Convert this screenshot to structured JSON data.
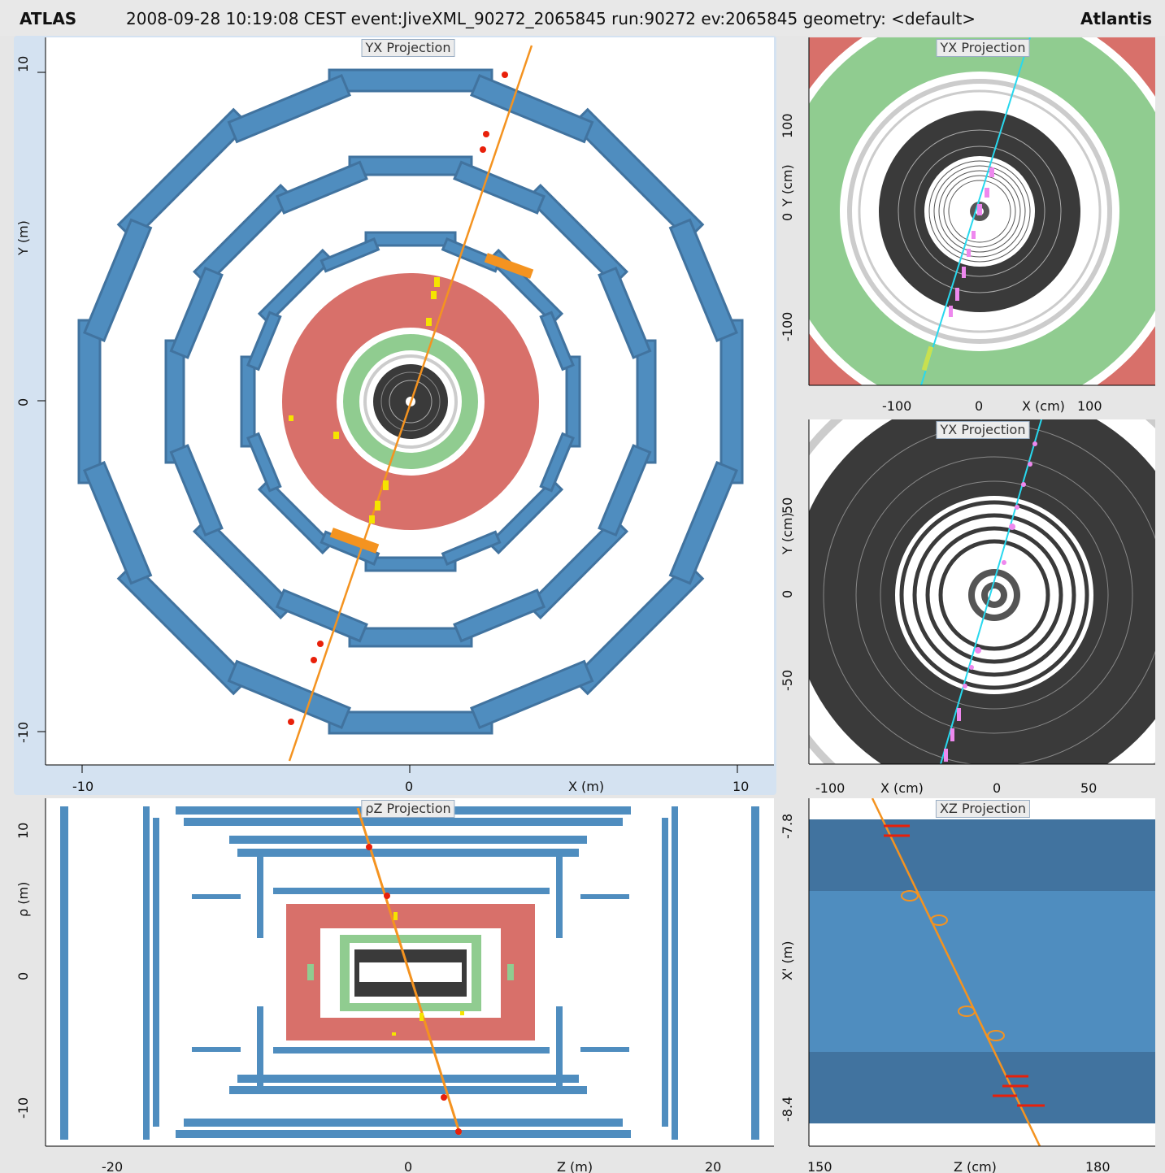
{
  "header": {
    "app": "ATLAS",
    "info": "2008-09-28 10:19:08 CEST event:JiveXML_90272_2065845 run:90272 ev:2065845 geometry: <default>",
    "brand": "Atlantis"
  },
  "panels": {
    "main": {
      "title": "YX Projection",
      "xlabel": "X (m)",
      "ylabel": "Y (m)",
      "xticks": [
        "-10",
        "0",
        "10"
      ],
      "yticks": [
        "10",
        "0",
        "-10"
      ]
    },
    "top_right": {
      "title": "YX Projection",
      "xlabel": "X (cm)",
      "ylabel": "Y (cm)",
      "xticks": [
        "-100",
        "0",
        "100"
      ],
      "yticks": [
        "100",
        "0",
        "-100"
      ]
    },
    "mid_right": {
      "title": "YX Projection",
      "xlabel": "X (cm)",
      "ylabel": "Y (cm)",
      "xticks": [
        "-100",
        "0",
        "50"
      ],
      "yticks": [
        "50",
        "0",
        "-50"
      ]
    },
    "bottom_left": {
      "title": "ρZ Projection",
      "xlabel": "Z (m)",
      "ylabel": "ρ (m)",
      "xticks": [
        "-20",
        "0",
        "20"
      ],
      "yticks": [
        "10",
        "0",
        "-10"
      ]
    },
    "bottom_right": {
      "title": "XZ Projection",
      "xlabel": "Z (cm)",
      "ylabel": "X' (m)",
      "xticks": [
        "150",
        "180"
      ],
      "yticks": [
        "-7.8",
        "-8.4"
      ]
    }
  },
  "colors": {
    "muon": "#4f8dbf",
    "muon_dark": "#41739f",
    "calo_had": "#d8706a",
    "calo_em": "#90cc90",
    "inner": "#3a3a3a",
    "track": "#f49320",
    "hit": "#e8200a",
    "cluster": "#f5e400",
    "pixel_hit": "#ee88ee",
    "cyan_track": "#28d8ee"
  }
}
